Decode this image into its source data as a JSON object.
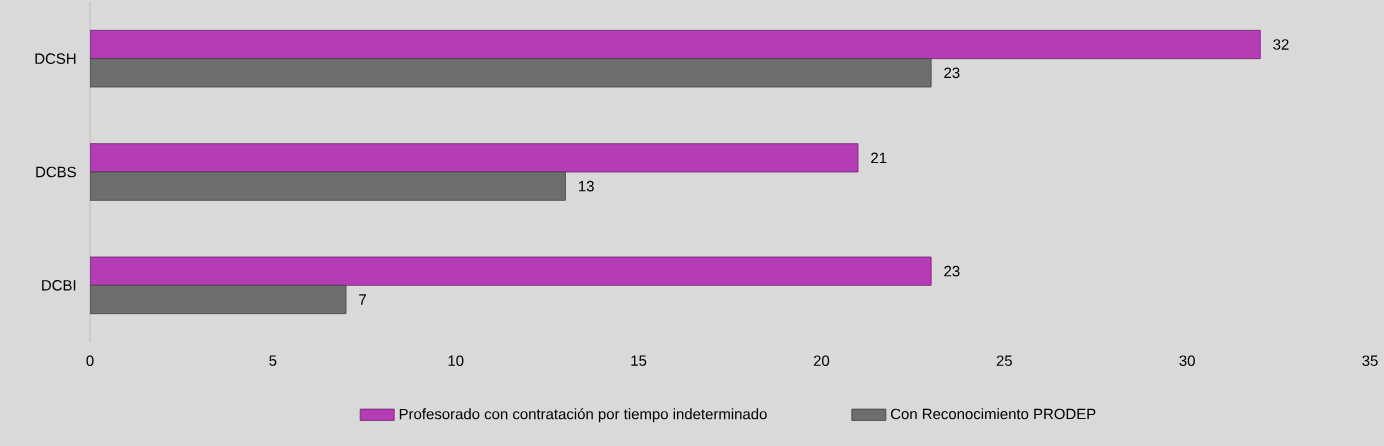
{
  "chart_data": {
    "type": "bar",
    "orientation": "horizontal",
    "categories": [
      "DCSH",
      "DCBS",
      "DCBI"
    ],
    "series": [
      {
        "name": "Profesorado con contratación por tiempo indeterminado",
        "color": "#b43cb4",
        "values": [
          32,
          21,
          23
        ]
      },
      {
        "name": "Con Reconocimiento PRODEP",
        "color": "#6e6e6e",
        "values": [
          23,
          13,
          7
        ]
      }
    ],
    "xlim": [
      0,
      35
    ],
    "xticks": [
      0,
      5,
      10,
      15,
      20,
      25,
      30,
      35
    ],
    "data_labels": true,
    "legend": "bottom"
  }
}
